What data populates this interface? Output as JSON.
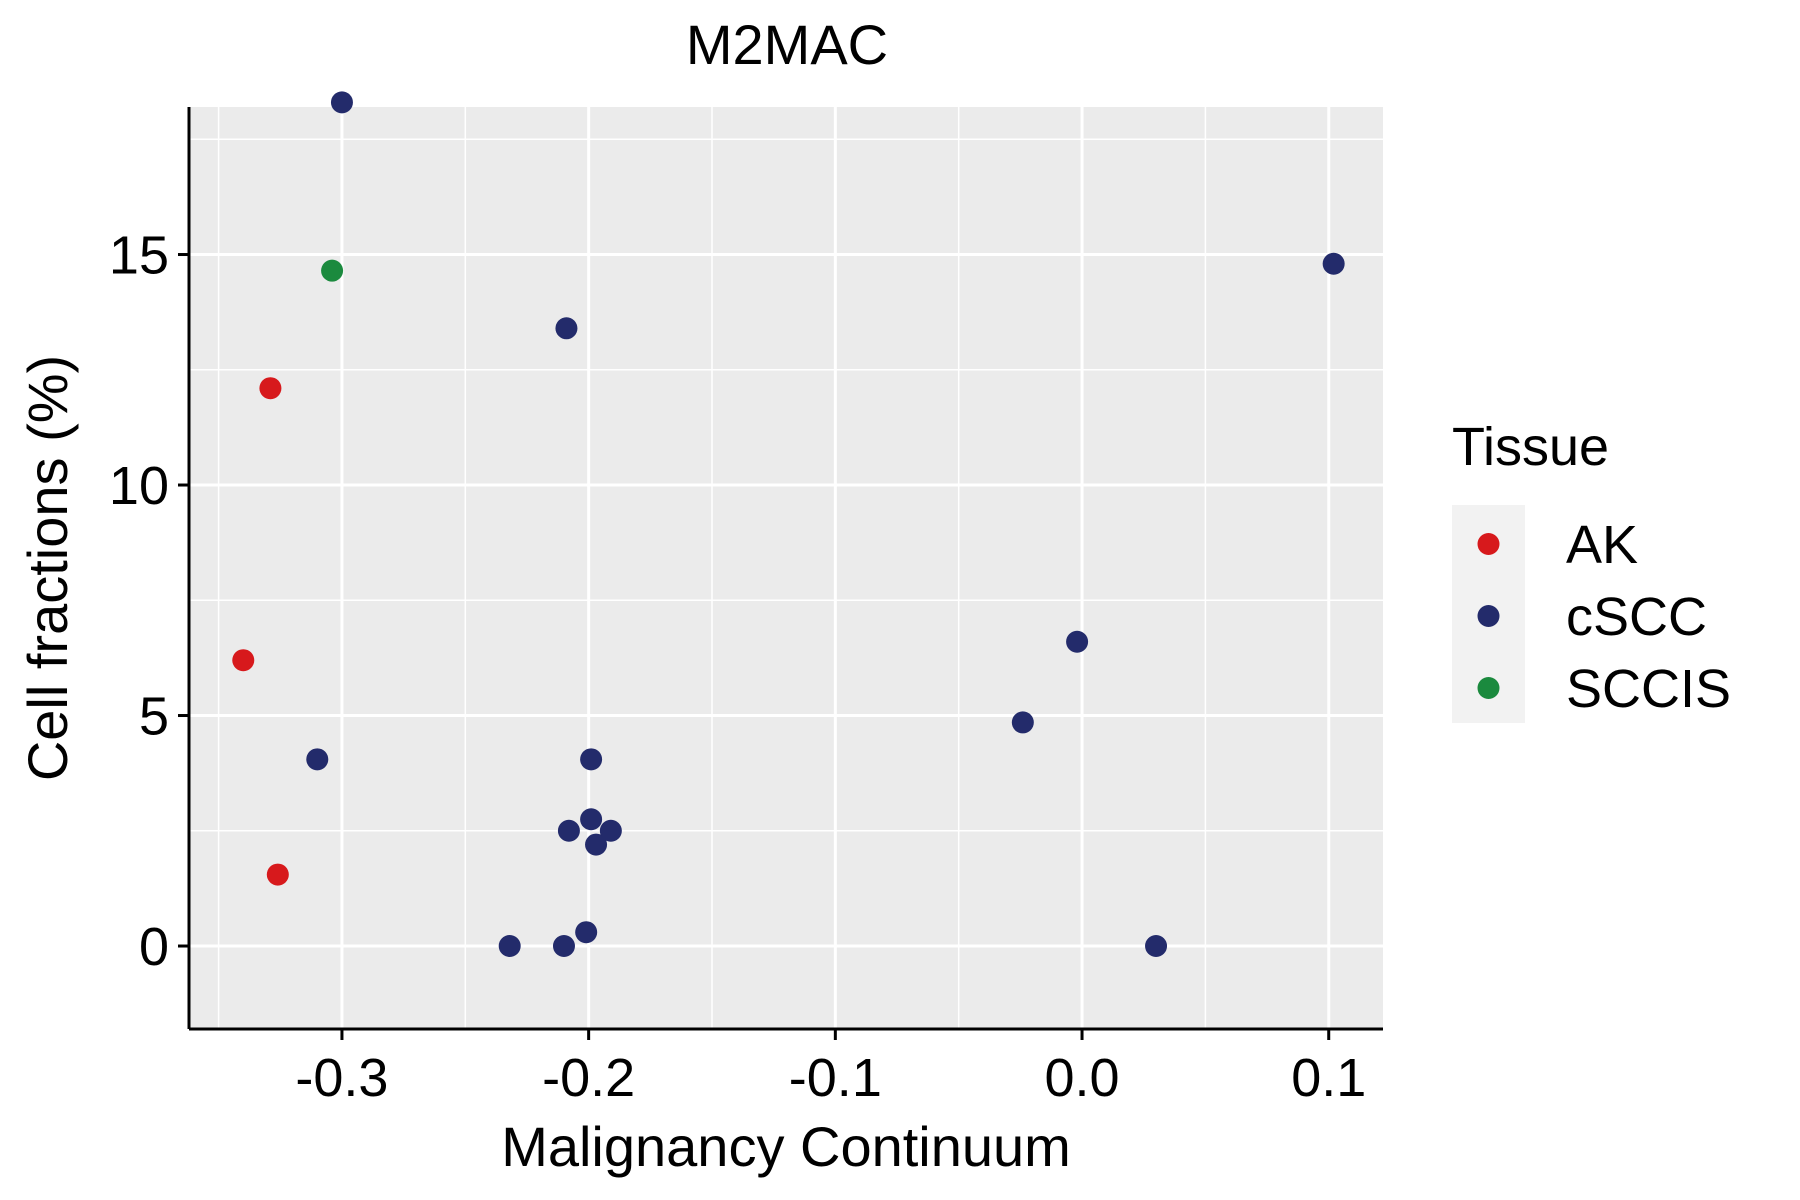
{
  "chart_data": {
    "type": "scatter",
    "title": "M2MAC",
    "xlabel": "Malignancy Continuum",
    "ylabel": "Cell fractions (%)",
    "xlim": [
      -0.362,
      0.122
    ],
    "ylim": [
      -1.8,
      18.2
    ],
    "x_ticks": [
      -0.3,
      -0.2,
      -0.1,
      0.0,
      0.1
    ],
    "x_tick_labels": [
      "-0.3",
      "-0.2",
      "-0.1",
      "0.0",
      "0.1"
    ],
    "y_ticks": [
      0,
      5,
      10,
      15
    ],
    "y_tick_labels": [
      "0",
      "5",
      "10",
      "15"
    ],
    "grid": true,
    "panel_background": "#EBEBEB",
    "legend": {
      "title": "Tissue",
      "position": "right",
      "entries": [
        {
          "label": "AK",
          "color": "#D7191C"
        },
        {
          "label": "cSCC",
          "color": "#232B6B"
        },
        {
          "label": "SCCIS",
          "color": "#1B8A3E"
        }
      ]
    },
    "series": [
      {
        "name": "AK",
        "color": "#D7191C",
        "points": [
          {
            "x": -0.329,
            "y": 12.1
          },
          {
            "x": -0.34,
            "y": 6.2
          },
          {
            "x": -0.326,
            "y": 1.55
          }
        ]
      },
      {
        "name": "cSCC",
        "color": "#232B6B",
        "points": [
          {
            "x": -0.3,
            "y": 18.3
          },
          {
            "x": -0.209,
            "y": 13.4
          },
          {
            "x": 0.102,
            "y": 14.8
          },
          {
            "x": -0.002,
            "y": 6.6
          },
          {
            "x": -0.024,
            "y": 4.85
          },
          {
            "x": -0.31,
            "y": 4.05
          },
          {
            "x": -0.199,
            "y": 4.05
          },
          {
            "x": -0.199,
            "y": 2.75
          },
          {
            "x": -0.208,
            "y": 2.5
          },
          {
            "x": -0.191,
            "y": 2.5
          },
          {
            "x": -0.197,
            "y": 2.2
          },
          {
            "x": -0.232,
            "y": 0.0
          },
          {
            "x": -0.21,
            "y": 0.0
          },
          {
            "x": -0.201,
            "y": 0.3
          },
          {
            "x": 0.03,
            "y": 0.0
          }
        ]
      },
      {
        "name": "SCCIS",
        "color": "#1B8A3E",
        "points": [
          {
            "x": -0.304,
            "y": 14.65
          }
        ]
      }
    ]
  }
}
